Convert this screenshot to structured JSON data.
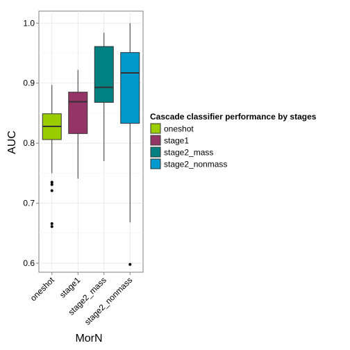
{
  "chart_data": {
    "type": "box",
    "title": "",
    "xlabel": "MorN",
    "ylabel": "AUC",
    "ylim": [
      0.585,
      1.02
    ],
    "yticks": [
      0.6,
      0.7,
      0.8,
      0.9,
      1.0
    ],
    "ytick_labels": [
      "0.6",
      "0.7",
      "0.8",
      "0.9",
      "1.0"
    ],
    "categories": [
      "oneshot",
      "stage1",
      "stage2_mass",
      "stage2_nonmass"
    ],
    "grid": true,
    "legend": {
      "title": "Cascade classifier performance by stages",
      "position": "right",
      "entries": [
        "oneshot",
        "stage1",
        "stage2_mass",
        "stage2_nonmass"
      ]
    },
    "boxes": [
      {
        "category": "oneshot",
        "lower_whisker": 0.75,
        "q1": 0.806,
        "median": 0.828,
        "q3": 0.849,
        "upper_whisker": 0.897,
        "outliers": [
          0.735,
          0.731,
          0.721,
          0.666,
          0.661
        ],
        "color": "#9ACD00"
      },
      {
        "category": "stage1",
        "lower_whisker": 0.741,
        "q1": 0.816,
        "median": 0.869,
        "q3": 0.885,
        "upper_whisker": 0.922,
        "outliers": [],
        "color": "#953466"
      },
      {
        "category": "stage2_mass",
        "lower_whisker": 0.77,
        "q1": 0.868,
        "median": 0.893,
        "q3": 0.961,
        "upper_whisker": 0.984,
        "outliers": [],
        "color": "#008080"
      },
      {
        "category": "stage2_nonmass",
        "lower_whisker": 0.668,
        "q1": 0.833,
        "median": 0.917,
        "q3": 0.951,
        "upper_whisker": 1.0,
        "outliers": [
          0.598
        ],
        "color": "#0099CC"
      }
    ]
  }
}
